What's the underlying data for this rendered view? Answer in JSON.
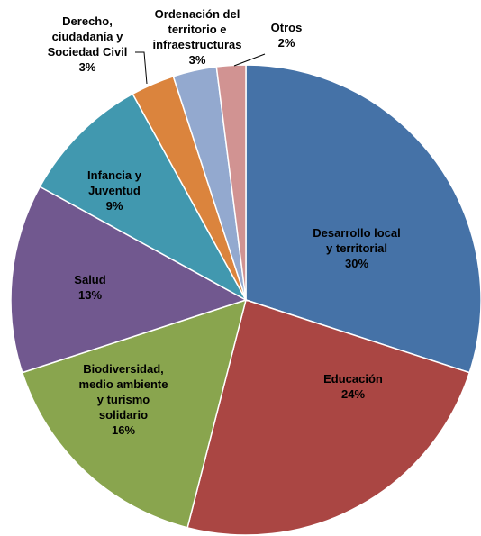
{
  "chart_data": {
    "type": "pie",
    "title": "",
    "slices": [
      {
        "key": "desarrollo",
        "label_lines": [
          "Desarrollo local",
          "y territorial"
        ],
        "percent_label": "30%",
        "value": 30,
        "color": "#4572A7"
      },
      {
        "key": "educacion",
        "label_lines": [
          "Educación"
        ],
        "percent_label": "24%",
        "value": 24,
        "color": "#AA4643"
      },
      {
        "key": "biodiversidad",
        "label_lines": [
          "Biodiversidad,",
          "medio ambiente",
          "y turismo",
          "solidario"
        ],
        "percent_label": "16%",
        "value": 16,
        "color": "#89A54E"
      },
      {
        "key": "salud",
        "label_lines": [
          "Salud"
        ],
        "percent_label": "13%",
        "value": 13,
        "color": "#71588F"
      },
      {
        "key": "infancia",
        "label_lines": [
          "Infancia y",
          "Juventud"
        ],
        "percent_label": "9%",
        "value": 9,
        "color": "#4198AF"
      },
      {
        "key": "derecho",
        "label_lines": [
          "Derecho,",
          "ciudadanía y",
          "Sociedad Civil"
        ],
        "percent_label": "3%",
        "value": 3,
        "color": "#DB843D"
      },
      {
        "key": "ordenacion",
        "label_lines": [
          "Ordenación del",
          "territorio e",
          "infraestructuras"
        ],
        "percent_label": "3%",
        "value": 3,
        "color": "#93A9CF"
      },
      {
        "key": "otros",
        "label_lines": [
          "Otros"
        ],
        "percent_label": "2%",
        "value": 2,
        "color": "#D19392"
      }
    ]
  }
}
